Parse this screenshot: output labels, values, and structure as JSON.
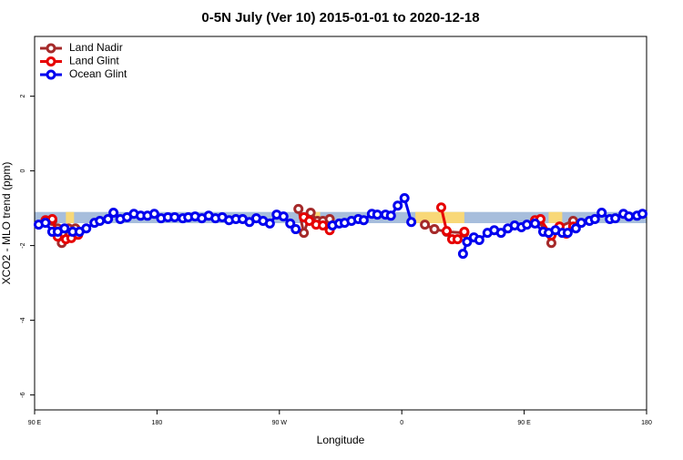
{
  "chart_data": {
    "type": "line",
    "title": "0-5N July (Ver 10)   2015-01-01 to 2020-12-18",
    "x_label": "Longitude",
    "y_label": "XCO2 - MLO trend (ppm)",
    "xlim": [
      90,
      540
    ],
    "ylim": [
      -6.4,
      3.6
    ],
    "xticks": [
      {
        "value": 90,
        "label": "90 E"
      },
      {
        "value": 180,
        "label": "180"
      },
      {
        "value": 270,
        "label": "90 W"
      },
      {
        "value": 360,
        "label": "0"
      },
      {
        "value": 450,
        "label": "90 E"
      },
      {
        "value": 540,
        "label": "180"
      }
    ],
    "yticks": [
      2,
      0,
      -2,
      -4,
      -6
    ],
    "legend": "top-left",
    "reference_band": {
      "color": "#a7bedc",
      "range": [
        -1.1,
        -1.4
      ]
    },
    "shaded_regions": {
      "color": "#f8d878",
      "ranges": [
        [
          113,
          119
        ],
        [
          290,
          300
        ],
        [
          370,
          406
        ],
        [
          468,
          478
        ]
      ]
    },
    "series": [
      {
        "name": "Land Nadir",
        "color": "#a52a2a",
        "x": [
          103,
          107,
          110,
          115,
          120,
          null,
          284,
          288,
          293,
          298,
          302,
          307,
          null,
          377,
          384,
          393,
          406,
          null,
          461,
          470,
          476,
          486
        ],
        "values": [
          -1.34,
          -1.54,
          -1.93,
          -1.54,
          -1.54,
          null,
          -1.02,
          -1.66,
          -1.12,
          -1.34,
          -1.34,
          -1.29,
          null,
          -1.44,
          -1.56,
          -1.63,
          -1.66,
          null,
          -1.34,
          -1.93,
          -1.49,
          -1.34
        ]
      },
      {
        "name": "Land Glint",
        "color": "#e60000",
        "x": [
          98,
          103,
          107,
          113,
          117,
          122,
          null,
          288,
          292,
          297,
          302,
          307,
          null,
          389,
          393,
          397,
          401,
          406,
          null,
          458,
          462,
          470,
          476,
          481,
          486
        ],
        "values": [
          -1.32,
          -1.29,
          -1.76,
          -1.83,
          -1.8,
          -1.71,
          null,
          -1.24,
          -1.34,
          -1.44,
          -1.46,
          -1.59,
          null,
          -0.98,
          -1.61,
          -1.83,
          -1.83,
          -1.63,
          null,
          -1.32,
          -1.29,
          -1.73,
          -1.49,
          -1.68,
          -1.49
        ]
      },
      {
        "name": "Ocean Glint",
        "color": "#0000ee",
        "x": [
          93,
          98,
          103,
          107,
          112,
          118,
          123,
          128,
          134,
          138,
          144,
          148,
          153,
          158,
          163,
          168,
          173,
          178,
          183,
          188,
          193,
          199,
          203,
          208,
          213,
          218,
          223,
          228,
          233,
          238,
          243,
          248,
          253,
          258,
          263,
          268,
          273,
          278,
          282,
          null,
          309,
          314,
          318,
          323,
          328,
          332,
          338,
          342,
          348,
          352,
          357,
          362,
          367,
          null,
          405,
          408,
          413,
          417,
          423,
          428,
          433,
          438,
          443,
          448,
          452,
          458,
          464,
          468,
          473,
          478,
          482,
          488,
          492,
          498,
          502,
          507,
          513,
          517,
          523,
          527,
          533,
          537
        ],
        "values": [
          -1.44,
          -1.39,
          -1.63,
          -1.63,
          -1.54,
          -1.63,
          -1.63,
          -1.54,
          -1.39,
          -1.34,
          -1.29,
          -1.12,
          -1.29,
          -1.24,
          -1.15,
          -1.2,
          -1.2,
          -1.15,
          -1.27,
          -1.24,
          -1.24,
          -1.27,
          -1.24,
          -1.22,
          -1.27,
          -1.2,
          -1.27,
          -1.24,
          -1.32,
          -1.29,
          -1.29,
          -1.37,
          -1.27,
          -1.34,
          -1.41,
          -1.17,
          -1.22,
          -1.41,
          -1.56,
          null,
          -1.46,
          -1.41,
          -1.39,
          -1.34,
          -1.29,
          -1.32,
          -1.15,
          -1.17,
          -1.17,
          -1.2,
          -0.93,
          -0.73,
          -1.37,
          null,
          -2.22,
          -1.9,
          -1.78,
          -1.85,
          -1.66,
          -1.59,
          -1.66,
          -1.54,
          -1.46,
          -1.51,
          -1.44,
          -1.41,
          -1.63,
          -1.66,
          -1.59,
          -1.66,
          -1.66,
          -1.54,
          -1.39,
          -1.34,
          -1.29,
          -1.12,
          -1.29,
          -1.27,
          -1.15,
          -1.22,
          -1.2,
          -1.15
        ]
      }
    ]
  }
}
